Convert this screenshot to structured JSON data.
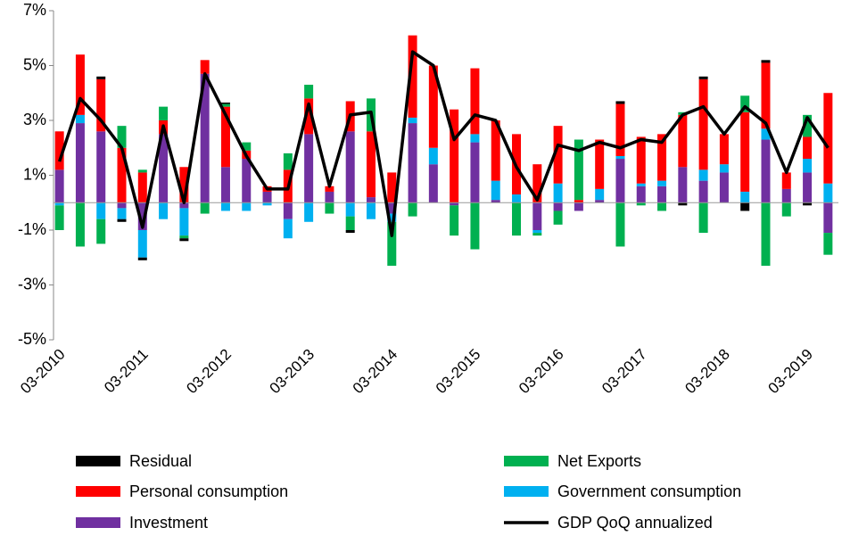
{
  "chart_data": {
    "type": "bar",
    "categories": [
      "03-2010",
      null,
      null,
      null,
      "03-2011",
      null,
      null,
      null,
      "03-2012",
      null,
      null,
      null,
      "03-2013",
      null,
      null,
      null,
      "03-2014",
      null,
      null,
      null,
      "03-2015",
      null,
      null,
      null,
      "03-2016",
      null,
      null,
      null,
      "03-2017",
      null,
      null,
      null,
      "03-2018",
      null,
      null,
      null,
      "03-2019",
      null
    ],
    "series": [
      {
        "name": "Residual",
        "color": "#000000",
        "values": [
          0,
          0,
          0.1,
          -0.1,
          -0.1,
          0,
          -0.1,
          0,
          0.05,
          0,
          0,
          0,
          0,
          0,
          -0.1,
          0,
          0,
          0,
          0,
          0,
          0,
          0,
          0,
          0,
          0,
          0,
          0,
          0.1,
          0,
          0,
          -0.1,
          0.1,
          0,
          -0.3,
          0.1,
          0,
          -0.1,
          0
        ]
      },
      {
        "name": "Net Exports",
        "color": "#00b050",
        "values": [
          -0.9,
          -1.6,
          -0.9,
          0.8,
          0.1,
          0.5,
          -0.1,
          -0.4,
          0.1,
          0.3,
          0,
          0.6,
          0.5,
          -0.4,
          -0.5,
          1.2,
          -1.6,
          -0.5,
          0,
          -1.1,
          -1.7,
          0,
          -1.2,
          -0.1,
          -0.5,
          2.2,
          0,
          -1.6,
          -0.1,
          -0.3,
          0.1,
          -1.1,
          0,
          0.6,
          -2.3,
          -0.5,
          0.8,
          -0.8
        ]
      },
      {
        "name": "Personal consumption",
        "color": "#ff0000",
        "values": [
          1.4,
          2.2,
          1.9,
          2.0,
          1.1,
          0.5,
          1.3,
          0.5,
          2.2,
          0.3,
          0.2,
          1.2,
          1.3,
          0.2,
          1.1,
          2.4,
          1.1,
          3.0,
          3.0,
          3.4,
          2.4,
          2.2,
          2.2,
          1.4,
          2.1,
          0.1,
          1.8,
          1.9,
          1.7,
          1.7,
          1.9,
          3.3,
          1.1,
          2.9,
          2.4,
          0.6,
          0.8,
          3.3
        ]
      },
      {
        "name": "Government consumption",
        "color": "#00b0f0",
        "values": [
          -0.1,
          0.3,
          -0.6,
          -0.4,
          -1.0,
          -0.6,
          -1.0,
          0,
          -0.3,
          -0.3,
          -0.1,
          -0.7,
          -0.7,
          0,
          -0.5,
          -0.6,
          -0.3,
          0.2,
          0.6,
          0,
          0.3,
          0.7,
          0.3,
          -0.1,
          0.7,
          0,
          0.4,
          0.1,
          0.1,
          0.2,
          0,
          0.4,
          0.3,
          0.4,
          0.4,
          0,
          0.5,
          0.7
        ]
      },
      {
        "name": "Investment",
        "color": "#7030a0",
        "values": [
          1.2,
          2.9,
          2.6,
          -0.2,
          -1.0,
          2.5,
          -0.2,
          4.7,
          1.3,
          1.6,
          0.4,
          -0.6,
          2.5,
          0.4,
          2.6,
          0.2,
          -0.4,
          2.9,
          1.4,
          -0.1,
          2.2,
          0.1,
          0,
          -1.0,
          -0.3,
          -0.3,
          0.1,
          1.6,
          0.6,
          0.6,
          1.3,
          0.8,
          1.1,
          0,
          2.3,
          0.5,
          1.1,
          -1.1
        ]
      },
      {
        "name": "GDP QoQ annualized",
        "color": "#000000",
        "type": "line",
        "values": [
          1.5,
          3.8,
          3.0,
          2.0,
          -0.9,
          2.8,
          0.0,
          4.7,
          3.2,
          1.7,
          0.5,
          0.5,
          3.6,
          0.6,
          3.2,
          3.3,
          -1.2,
          5.5,
          5.0,
          2.3,
          3.2,
          3.0,
          1.3,
          0.1,
          2.1,
          1.9,
          2.2,
          2.0,
          2.3,
          2.2,
          3.2,
          3.5,
          2.5,
          3.5,
          2.9,
          1.1,
          3.1,
          2.0
        ]
      }
    ],
    "ylim": [
      -5,
      7
    ],
    "yticks": [
      {
        "value": 7,
        "label": "7%"
      },
      {
        "value": 5,
        "label": "5%"
      },
      {
        "value": 3,
        "label": "3%"
      },
      {
        "value": 1,
        "label": "1%"
      },
      {
        "value": -1,
        "label": "-1%"
      },
      {
        "value": -3,
        "label": "-3%"
      },
      {
        "value": -5,
        "label": "-5%"
      }
    ],
    "legend": "bottom"
  }
}
